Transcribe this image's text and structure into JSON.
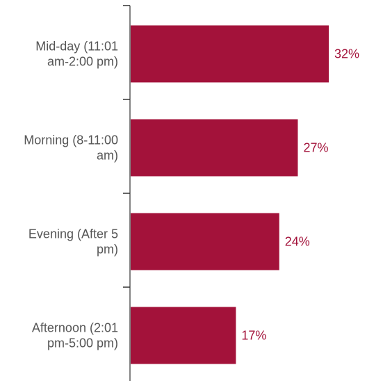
{
  "chart_data": {
    "type": "bar",
    "orientation": "horizontal",
    "categories": [
      "Mid-day (11:01 am-2:00 pm)",
      "Morning (8-11:00 am)",
      "Evening (After 5 pm)",
      "Afternoon (2:01 pm-5:00 pm)"
    ],
    "category_lines": [
      [
        "Mid-day (11:01",
        "am-2:00 pm)"
      ],
      [
        "Morning (8-11:00",
        "am)"
      ],
      [
        "Evening (After 5",
        "pm)"
      ],
      [
        "Afternoon (2:01",
        "pm-5:00 pm)"
      ]
    ],
    "values": [
      32,
      27,
      24,
      17
    ],
    "value_labels": [
      "32%",
      "27%",
      "24%",
      "17%"
    ],
    "unit": "%",
    "title": "",
    "xlabel": "",
    "ylabel": "",
    "xlim": [
      0,
      34
    ],
    "grid": false,
    "legend": "none",
    "colors": {
      "bar": "#A3123A",
      "value_label": "#A3123A",
      "axis": "#333333",
      "category_label": "#555555"
    }
  }
}
